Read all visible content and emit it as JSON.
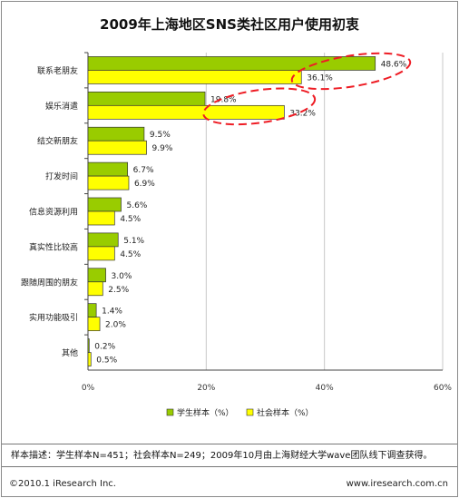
{
  "chart_data": {
    "type": "bar",
    "orientation": "horizontal",
    "title": "2009年上海地区SNS类社区用户使用初衷",
    "categories": [
      "联系老朋友",
      "娱乐消遣",
      "结交新朋友",
      "打发时间",
      "信息资源利用",
      "真实性比较高",
      "跟随周围的朋友",
      "实用功能吸引",
      "其他"
    ],
    "series": [
      {
        "name": "学生样本（%）",
        "color": "#99cc00",
        "values": [
          48.6,
          19.8,
          9.5,
          6.7,
          5.6,
          5.1,
          3.0,
          1.4,
          0.2
        ],
        "labels": [
          "48.6%",
          "19.8%",
          "9.5%",
          "6.7%",
          "5.6%",
          "5.1%",
          "3.0%",
          "1.4%",
          "0.2%"
        ]
      },
      {
        "name": "社会样本（%）",
        "color": "#ffff00",
        "values": [
          36.1,
          33.2,
          9.9,
          6.9,
          4.5,
          4.5,
          2.5,
          2.0,
          0.5
        ],
        "labels": [
          "36.1%",
          "33.2%",
          "9.9%",
          "6.9%",
          "4.5%",
          "4.5%",
          "2.5%",
          "2.0%",
          "0.5%"
        ]
      }
    ],
    "xlim": [
      0,
      60
    ],
    "xticks": [
      0,
      20,
      40,
      60
    ],
    "xtick_labels": [
      "0%",
      "20%",
      "40%",
      "60%"
    ],
    "grid": true,
    "legend_position": "bottom",
    "highlight_color": "#ee1c24"
  },
  "footer": {
    "note": "样本描述：学生样本N=451；社会样本N=249；2009年10月由上海财经大学wave团队线下调查获得。",
    "copyright": "©2010.1 iResearch Inc.",
    "url": "www.iresearch.com.cn"
  }
}
